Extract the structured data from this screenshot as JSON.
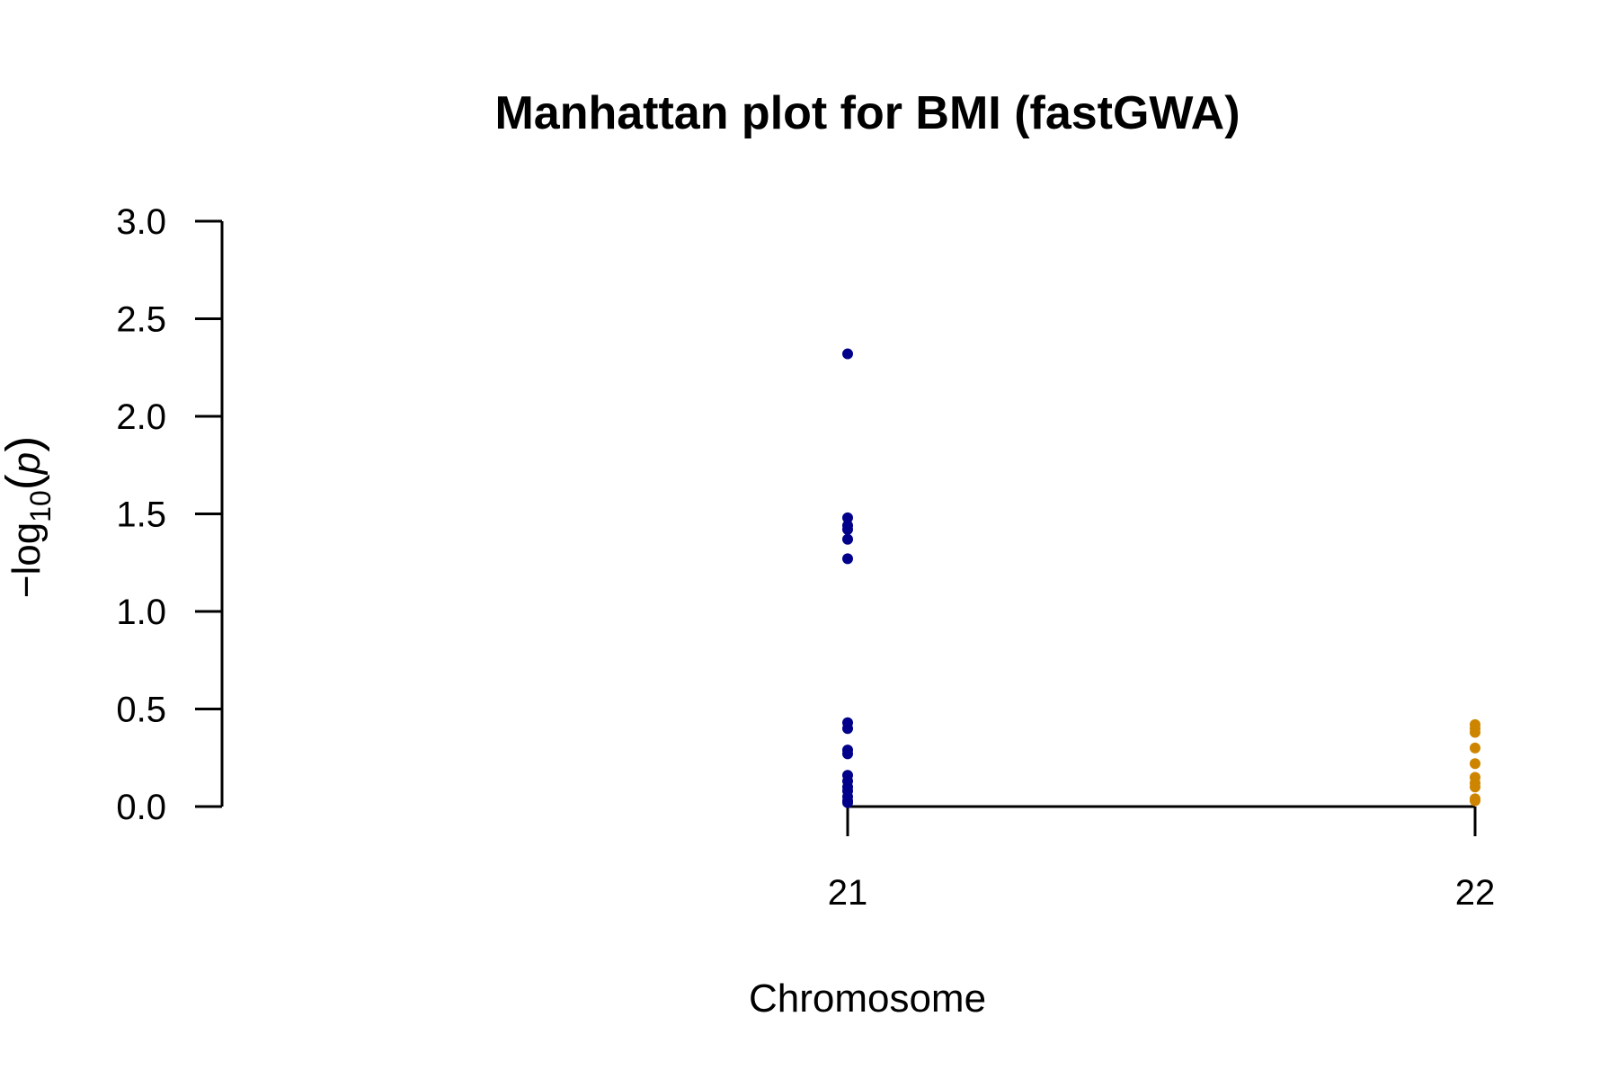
{
  "chart_data": {
    "type": "scatter",
    "title": "Manhattan plot for BMI (fastGWA)",
    "xlabel": "Chromosome",
    "ylabel_parts": {
      "prefix": "−log",
      "subscript": "10",
      "open": "(",
      "var": "p",
      "close": ")"
    },
    "ylim": [
      0,
      3
    ],
    "y_ticks": [
      "0.0",
      "0.5",
      "1.0",
      "1.5",
      "2.0",
      "2.5",
      "3.0"
    ],
    "x_ticks": [
      "21",
      "22"
    ],
    "series": [
      {
        "chromosome": "21",
        "color": "#00008B",
        "values": [
          2.32,
          1.48,
          1.44,
          1.42,
          1.37,
          1.27,
          0.43,
          0.4,
          0.29,
          0.27,
          0.16,
          0.13,
          0.1,
          0.08,
          0.05,
          0.03,
          0.02
        ]
      },
      {
        "chromosome": "22",
        "color": "#CD8500",
        "values": [
          0.42,
          0.4,
          0.38,
          0.3,
          0.22,
          0.15,
          0.12,
          0.1,
          0.04,
          0.03
        ]
      }
    ]
  }
}
